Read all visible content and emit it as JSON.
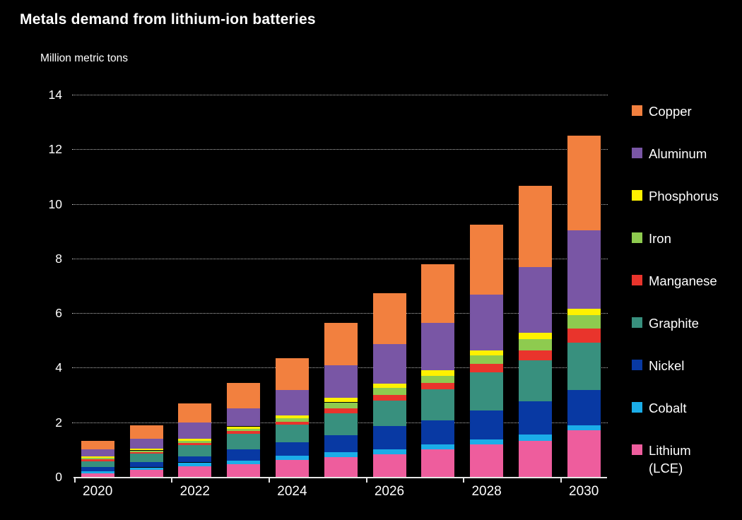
{
  "title": "Metals demand from lithium-ion batteries",
  "y_axis": {
    "label": "Million metric tons",
    "ticks": [
      0,
      2,
      4,
      6,
      8,
      10,
      12,
      14
    ],
    "max": 14
  },
  "x_axis": {
    "labels": [
      "2020",
      "2022",
      "2024",
      "2026",
      "2028",
      "2030"
    ]
  },
  "legend": [
    {
      "label": "Copper",
      "color": "#F2803F"
    },
    {
      "label": "Aluminum",
      "color": "#7956A5"
    },
    {
      "label": "Phosphorus",
      "color": "#FFF100"
    },
    {
      "label": "Iron",
      "color": "#8ECB4F"
    },
    {
      "label": "Manganese",
      "color": "#E9342C"
    },
    {
      "label": "Graphite",
      "color": "#38907E"
    },
    {
      "label": "Nickel",
      "color": "#0839A3"
    },
    {
      "label": "Cobalt",
      "color": "#1BADE8"
    },
    {
      "label": "Lithium (LCE)",
      "color": "#EE5D9D"
    }
  ],
  "chart_data": {
    "type": "bar",
    "stacked": true,
    "title": "Metals demand from lithium-ion batteries",
    "xlabel": "",
    "ylabel": "Million metric tons",
    "ylim": [
      0,
      14
    ],
    "grid": "horizontal-dotted",
    "legend_position": "right",
    "categories": [
      2020,
      2021,
      2022,
      2023,
      2024,
      2025,
      2026,
      2027,
      2028,
      2029,
      2030
    ],
    "series": [
      {
        "name": "Lithium (LCE)",
        "color": "#EE5D9D",
        "values": [
          0.12,
          0.26,
          0.4,
          0.47,
          0.63,
          0.73,
          0.82,
          1.01,
          1.2,
          1.33,
          1.71
        ]
      },
      {
        "name": "Cobalt",
        "color": "#1BADE8",
        "values": [
          0.09,
          0.09,
          0.13,
          0.12,
          0.14,
          0.17,
          0.19,
          0.19,
          0.17,
          0.23,
          0.19
        ]
      },
      {
        "name": "Nickel",
        "color": "#0839A3",
        "values": [
          0.15,
          0.19,
          0.23,
          0.43,
          0.49,
          0.62,
          0.86,
          0.86,
          1.06,
          1.22,
          1.28
        ]
      },
      {
        "name": "Graphite",
        "color": "#38907E",
        "values": [
          0.22,
          0.31,
          0.41,
          0.57,
          0.66,
          0.82,
          0.92,
          1.15,
          1.4,
          1.5,
          1.73
        ]
      },
      {
        "name": "Manganese",
        "color": "#E9342C",
        "values": [
          0.06,
          0.06,
          0.07,
          0.09,
          0.1,
          0.18,
          0.22,
          0.23,
          0.3,
          0.36,
          0.52
        ]
      },
      {
        "name": "Iron",
        "color": "#8ECB4F",
        "values": [
          0.05,
          0.06,
          0.09,
          0.09,
          0.13,
          0.21,
          0.26,
          0.26,
          0.33,
          0.41,
          0.5
        ]
      },
      {
        "name": "Phosphorus",
        "color": "#FFF100",
        "values": [
          0.06,
          0.07,
          0.07,
          0.08,
          0.1,
          0.16,
          0.15,
          0.22,
          0.17,
          0.24,
          0.24
        ]
      },
      {
        "name": "Aluminum",
        "color": "#7956A5",
        "values": [
          0.26,
          0.36,
          0.59,
          0.67,
          0.93,
          1.2,
          1.45,
          1.72,
          2.05,
          2.4,
          2.85
        ]
      },
      {
        "name": "Copper",
        "color": "#F2803F",
        "values": [
          0.32,
          0.48,
          0.69,
          0.92,
          1.18,
          1.54,
          1.85,
          2.16,
          2.56,
          2.96,
          3.47
        ]
      }
    ],
    "totals": [
      1.33,
      1.88,
      2.68,
      3.44,
      4.36,
      5.63,
      6.72,
      7.8,
      9.24,
      10.65,
      12.49
    ]
  }
}
